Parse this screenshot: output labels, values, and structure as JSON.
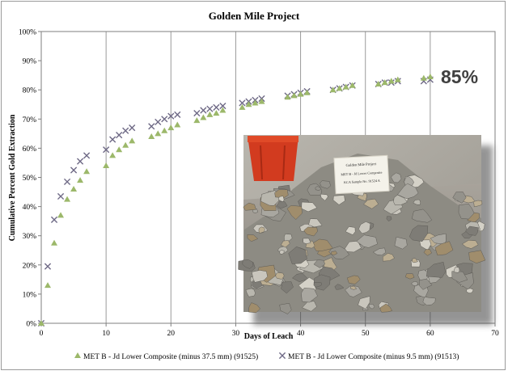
{
  "chart_data": {
    "type": "scatter",
    "title": "Golden Mile Project",
    "xlabel": "Days of Leach",
    "ylabel": "Cumulative Percent Gold Extraction",
    "xlim": [
      0,
      70
    ],
    "ylim": [
      0,
      100
    ],
    "x_ticks": [
      0,
      10,
      20,
      30,
      40,
      50,
      60,
      70
    ],
    "y_ticks": [
      "0%",
      "10%",
      "20%",
      "30%",
      "40%",
      "50%",
      "60%",
      "70%",
      "80%",
      "90%",
      "100%"
    ],
    "grid": "vertical gridlines",
    "legend_position": "bottom",
    "annotation": "85%",
    "series": [
      {
        "name": "MET B - Jd Lower Composite (minus 37.5 mm) (91525)",
        "marker": "triangle",
        "color": "#9cb86a",
        "points": [
          [
            0,
            0
          ],
          [
            1,
            13
          ],
          [
            2,
            27.5
          ],
          [
            3,
            37
          ],
          [
            4,
            42.5
          ],
          [
            5,
            46
          ],
          [
            6,
            49
          ],
          [
            7,
            52
          ],
          [
            10,
            54
          ],
          [
            11,
            57.5
          ],
          [
            12,
            59.5
          ],
          [
            13,
            61
          ],
          [
            14,
            62.5
          ],
          [
            17,
            64
          ],
          [
            18,
            65
          ],
          [
            19,
            66
          ],
          [
            20,
            67
          ],
          [
            21,
            68
          ],
          [
            24,
            69.5
          ],
          [
            25,
            70.5
          ],
          [
            26,
            71.5
          ],
          [
            27,
            72
          ],
          [
            28,
            73
          ],
          [
            31,
            74
          ],
          [
            32,
            75
          ],
          [
            33,
            75.5
          ],
          [
            34,
            76
          ],
          [
            38,
            77.5
          ],
          [
            39,
            78
          ],
          [
            40,
            78.5
          ],
          [
            41,
            79
          ],
          [
            45,
            80
          ],
          [
            46,
            80.5
          ],
          [
            47,
            81
          ],
          [
            48,
            81.5
          ],
          [
            52,
            82
          ],
          [
            53,
            82.5
          ],
          [
            54,
            83
          ],
          [
            55,
            83.5
          ],
          [
            59,
            84
          ],
          [
            60,
            84.5
          ]
        ]
      },
      {
        "name": "MET B - Jd Lower Composite (minus 9.5 mm) (91513)",
        "marker": "x",
        "color": "#6f6a86",
        "points": [
          [
            0,
            0
          ],
          [
            1,
            19.5
          ],
          [
            2,
            35.5
          ],
          [
            3,
            43.5
          ],
          [
            4,
            48.5
          ],
          [
            5,
            52.5
          ],
          [
            6,
            55.5
          ],
          [
            7,
            57.5
          ],
          [
            10,
            59.5
          ],
          [
            11,
            63
          ],
          [
            12,
            64.5
          ],
          [
            13,
            66
          ],
          [
            14,
            67
          ],
          [
            17,
            67.5
          ],
          [
            18,
            69
          ],
          [
            19,
            70
          ],
          [
            20,
            71
          ],
          [
            21,
            71.5
          ],
          [
            24,
            72
          ],
          [
            25,
            73
          ],
          [
            26,
            73.5
          ],
          [
            27,
            74
          ],
          [
            28,
            74.5
          ],
          [
            31,
            75.5
          ],
          [
            32,
            76
          ],
          [
            33,
            76.5
          ],
          [
            34,
            77
          ],
          [
            38,
            78
          ],
          [
            39,
            78.5
          ],
          [
            40,
            79
          ],
          [
            41,
            79.5
          ],
          [
            45,
            80
          ],
          [
            46,
            80.5
          ],
          [
            47,
            81
          ],
          [
            48,
            81.5
          ],
          [
            52,
            82
          ],
          [
            53,
            82.5
          ],
          [
            54,
            82.5
          ],
          [
            55,
            83
          ],
          [
            59,
            83
          ],
          [
            60,
            83.5
          ]
        ]
      }
    ]
  },
  "photo": {
    "sign_lines": [
      "Golden Mile Project",
      "MET B - Jd Lower Composite",
      "KCA Sample No. 91524 A"
    ]
  }
}
